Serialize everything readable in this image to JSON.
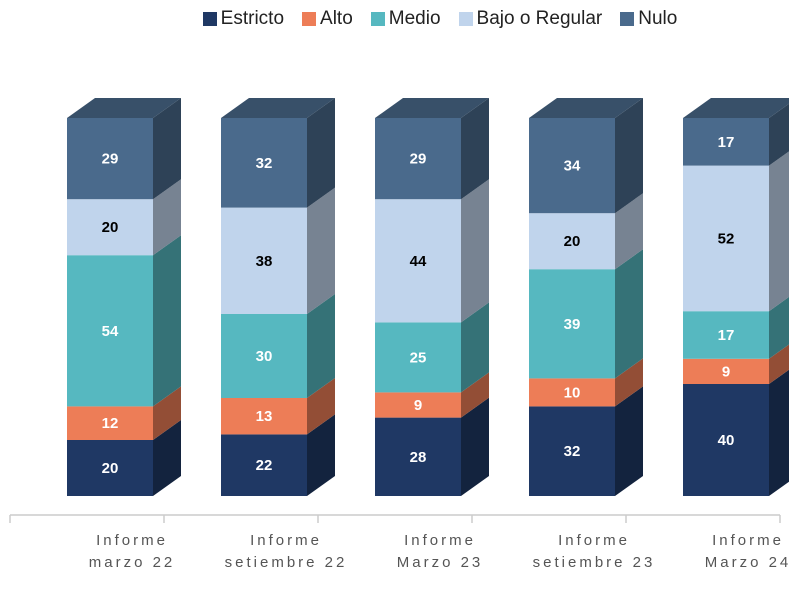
{
  "chart_data": {
    "type": "bar3d_stacked",
    "categories": [
      "Informe marzo 22",
      "Informe setiembre 22",
      "Informe Marzo 23",
      "Informe setiembre 23",
      "Informe Marzo 24"
    ],
    "series": [
      {
        "name": "Estricto",
        "color": "#1f3864",
        "values": [
          20,
          22,
          28,
          32,
          40
        ]
      },
      {
        "name": "Alto",
        "color": "#ed7d57",
        "values": [
          12,
          13,
          9,
          10,
          9
        ]
      },
      {
        "name": "Medio",
        "color": "#56b8c0",
        "values": [
          54,
          30,
          25,
          39,
          17
        ]
      },
      {
        "name": "Bajo o Regular",
        "color": "#c0d4ec",
        "values": [
          20,
          38,
          44,
          20,
          52
        ]
      },
      {
        "name": "Nulo",
        "color": "#4a6a8c",
        "values": [
          29,
          32,
          29,
          34,
          17
        ]
      }
    ],
    "legend": "top"
  }
}
